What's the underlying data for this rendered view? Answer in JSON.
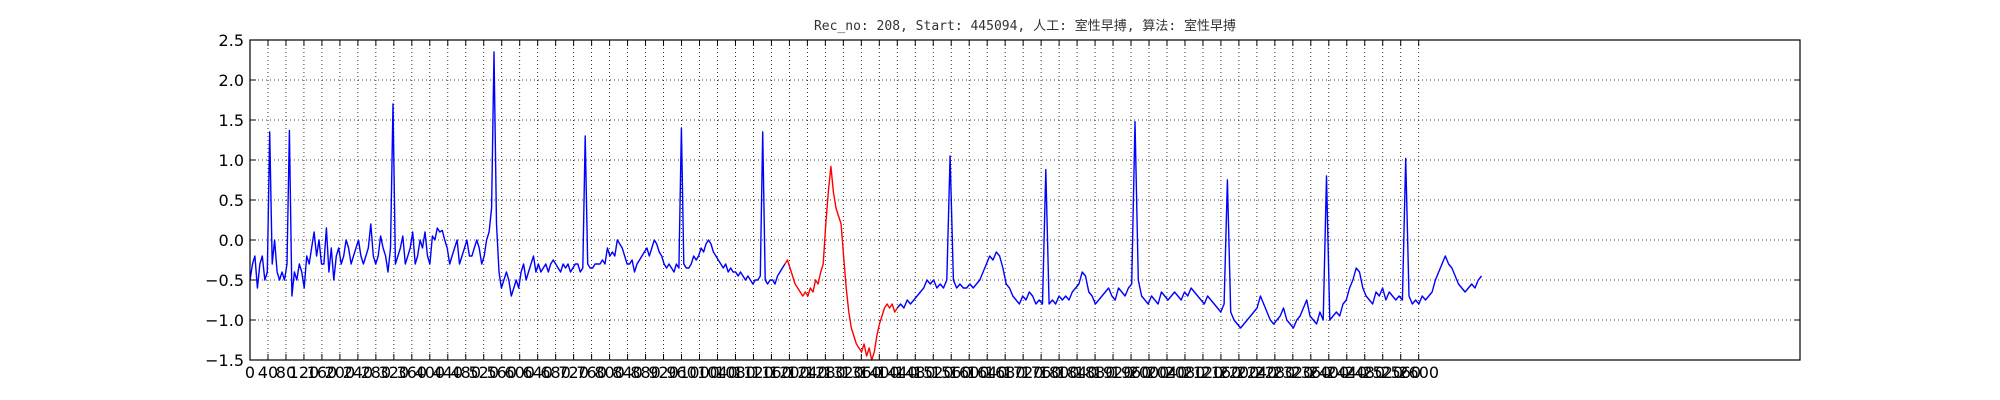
{
  "chart_data": {
    "type": "line",
    "title": "Rec_no: 208, Start: 445094, 人工: 室性早搏, 算法: 室性早搏",
    "xlabel": "",
    "ylabel": "",
    "xlim": [
      0,
      3000
    ],
    "ylim": [
      -1.5,
      2.5
    ],
    "grid": true,
    "x_step": 40,
    "y_ticks": [
      "2.5",
      "2.0",
      "1.5",
      "1.0",
      "0.5",
      "0.0",
      "−0.5",
      "−1.0",
      "−1.5"
    ],
    "x_ticks": [
      "0",
      "40",
      "80",
      "120",
      "160",
      "200",
      "240",
      "280",
      "320",
      "360",
      "400",
      "440",
      "480",
      "520",
      "560",
      "600",
      "640",
      "680",
      "720",
      "760",
      "800",
      "840",
      "880",
      "920",
      "960",
      "1000",
      "1040",
      "1080",
      "1120",
      "1160",
      "1200",
      "1240",
      "1280",
      "1320",
      "1360",
      "1400",
      "1440",
      "1480",
      "1520",
      "1560",
      "1600",
      "1640",
      "1680",
      "1720",
      "1760",
      "1800",
      "1840",
      "1880",
      "1920",
      "1960",
      "2000",
      "2040",
      "2080",
      "2120",
      "2160",
      "2200",
      "2240",
      "2280",
      "2320",
      "2360",
      "2400",
      "2440",
      "2480",
      "2520",
      "2560",
      "2600"
    ],
    "series": [
      {
        "color": "#0000ff",
        "values": [
          -0.5,
          -0.3,
          -0.2,
          -0.6,
          -0.3,
          -0.2,
          -0.5,
          -0.4,
          1.35,
          -0.3,
          0.0,
          -0.4,
          -0.5,
          -0.4,
          -0.5,
          -0.3,
          1.37,
          -0.7,
          -0.4,
          -0.5,
          -0.3,
          -0.4,
          -0.6,
          -0.2,
          -0.3,
          -0.1,
          0.1,
          -0.2,
          0.0,
          -0.3,
          -0.3,
          0.15,
          -0.4,
          -0.1,
          -0.5,
          -0.2,
          -0.1,
          -0.3,
          -0.2,
          0.0,
          -0.1,
          -0.3,
          -0.2,
          -0.1,
          0.0,
          -0.2,
          -0.3,
          -0.2,
          -0.1,
          0.2,
          -0.2,
          -0.3,
          -0.2,
          0.05,
          -0.1,
          -0.2,
          -0.4,
          -0.1,
          1.7,
          -0.3,
          -0.2,
          -0.1,
          0.05,
          -0.3,
          -0.2,
          -0.1,
          0.1,
          -0.3,
          -0.2,
          0.0,
          -0.1,
          0.1,
          -0.2,
          -0.3,
          0.05,
          0.0,
          0.15,
          0.1,
          0.12,
          0.0,
          -0.1,
          -0.3,
          -0.2,
          -0.1,
          0.0,
          -0.3,
          -0.2,
          -0.1,
          0.0,
          -0.2,
          -0.2,
          -0.1,
          0.0,
          -0.1,
          -0.3,
          -0.2,
          0.0,
          0.1,
          0.4,
          2.35,
          0.2,
          -0.4,
          -0.6,
          -0.5,
          -0.4,
          -0.5,
          -0.7,
          -0.6,
          -0.5,
          -0.6,
          -0.4,
          -0.3,
          -0.5,
          -0.4,
          -0.3,
          -0.2,
          -0.4,
          -0.3,
          -0.4,
          -0.35,
          -0.3,
          -0.4,
          -0.3,
          -0.25,
          -0.3,
          -0.35,
          -0.4,
          -0.3,
          -0.35,
          -0.3,
          -0.4,
          -0.35,
          -0.3,
          -0.3,
          -0.4,
          -0.35,
          1.3,
          -0.3,
          -0.35,
          -0.35,
          -0.3,
          -0.3,
          -0.3,
          -0.25,
          -0.3,
          -0.1,
          -0.2,
          -0.15,
          -0.2,
          0.0,
          -0.05,
          -0.1,
          -0.2,
          -0.3,
          -0.3,
          -0.25,
          -0.4,
          -0.3,
          -0.25,
          -0.2,
          -0.15,
          -0.1,
          -0.2,
          -0.1,
          0.0,
          -0.05,
          -0.15,
          -0.2,
          -0.3,
          -0.35,
          -0.3,
          -0.35,
          -0.4,
          -0.3,
          -0.35,
          1.4,
          -0.3,
          -0.35,
          -0.35,
          -0.3,
          -0.2,
          -0.25,
          -0.2,
          -0.1,
          -0.15,
          -0.05,
          0.0,
          -0.05,
          -0.15,
          -0.2,
          -0.25,
          -0.3,
          -0.35,
          -0.3,
          -0.4,
          -0.35,
          -0.4,
          -0.4,
          -0.45,
          -0.4,
          -0.45,
          -0.5,
          -0.45,
          -0.5,
          -0.55,
          -0.5,
          -0.5,
          -0.45,
          1.35,
          -0.5,
          -0.55,
          -0.5,
          -0.5,
          -0.55,
          -0.45,
          -0.4,
          -0.35,
          -0.3
        ]
      },
      {
        "color": "#ff0000",
        "values": [
          -0.3,
          -0.25,
          -0.35,
          -0.45,
          -0.55,
          -0.6,
          -0.65,
          -0.7,
          -0.65,
          -0.7,
          -0.6,
          -0.65,
          -0.5,
          -0.55,
          -0.4,
          -0.3,
          0.2,
          0.6,
          0.92,
          0.6,
          0.4,
          0.3,
          0.2,
          -0.2,
          -0.6,
          -0.9,
          -1.1,
          -1.2,
          -1.3,
          -1.35,
          -1.4,
          -1.3,
          -1.45,
          -1.35,
          -1.5,
          -1.4,
          -1.2,
          -1.05,
          -0.95,
          -0.85,
          -0.8,
          -0.85,
          -0.8,
          -0.9,
          -0.85
        ]
      },
      {
        "color": "#0000ff",
        "values": [
          -0.85,
          -0.8,
          -0.85,
          -0.75,
          -0.8,
          -0.75,
          -0.7,
          -0.65,
          -0.6,
          -0.5,
          -0.55,
          -0.5,
          -0.6,
          -0.55,
          -0.6,
          -0.5,
          1.05,
          -0.5,
          -0.6,
          -0.55,
          -0.6,
          -0.6,
          -0.55,
          -0.6,
          -0.55,
          -0.5,
          -0.4,
          -0.3,
          -0.2,
          -0.25,
          -0.15,
          -0.2,
          -0.35,
          -0.55,
          -0.6,
          -0.7,
          -0.75,
          -0.8,
          -0.7,
          -0.75,
          -0.65,
          -0.7,
          -0.8,
          -0.75,
          -0.8,
          0.88,
          -0.8,
          -0.75,
          -0.8,
          -0.7,
          -0.75,
          -0.7,
          -0.75,
          -0.65,
          -0.6,
          -0.55,
          -0.4,
          -0.45,
          -0.65,
          -0.7,
          -0.8,
          -0.75,
          -0.7,
          -0.65,
          -0.6,
          -0.7,
          -0.75,
          -0.6,
          -0.65,
          -0.7,
          -0.6,
          -0.55,
          1.48,
          -0.5,
          -0.7,
          -0.75,
          -0.8,
          -0.7,
          -0.75,
          -0.8,
          -0.65,
          -0.7,
          -0.75,
          -0.7,
          -0.65,
          -0.7,
          -0.75,
          -0.65,
          -0.7,
          -0.6,
          -0.65,
          -0.7,
          -0.75,
          -0.8,
          -0.7,
          -0.75,
          -0.8,
          -0.85,
          -0.9,
          -0.8,
          0.75,
          -0.9,
          -1.0,
          -1.05,
          -1.1,
          -1.05,
          -1.0,
          -0.95,
          -0.9,
          -0.85,
          -0.7,
          -0.8,
          -0.9,
          -1.0,
          -1.05,
          -1.0,
          -0.95,
          -0.85,
          -1.0,
          -1.05,
          -1.1,
          -1.0,
          -0.95,
          -0.85,
          -0.75,
          -0.95,
          -1.0,
          -1.05,
          -0.9,
          -1.0,
          0.8,
          -1.0,
          -0.95,
          -0.9,
          -0.95,
          -0.8,
          -0.75,
          -0.6,
          -0.5,
          -0.35,
          -0.4,
          -0.6,
          -0.7,
          -0.75,
          -0.8,
          -0.65,
          -0.7,
          -0.6,
          -0.75,
          -0.65,
          -0.7,
          -0.75,
          -0.7,
          -0.75,
          1.02,
          -0.7,
          -0.8,
          -0.75,
          -0.8,
          -0.7,
          -0.75,
          -0.7,
          -0.65,
          -0.5,
          -0.4,
          -0.3,
          -0.2,
          -0.3,
          -0.35,
          -0.45,
          -0.55,
          -0.6,
          -0.65,
          -0.6,
          -0.55,
          -0.6,
          -0.5,
          -0.45
        ]
      }
    ]
  }
}
